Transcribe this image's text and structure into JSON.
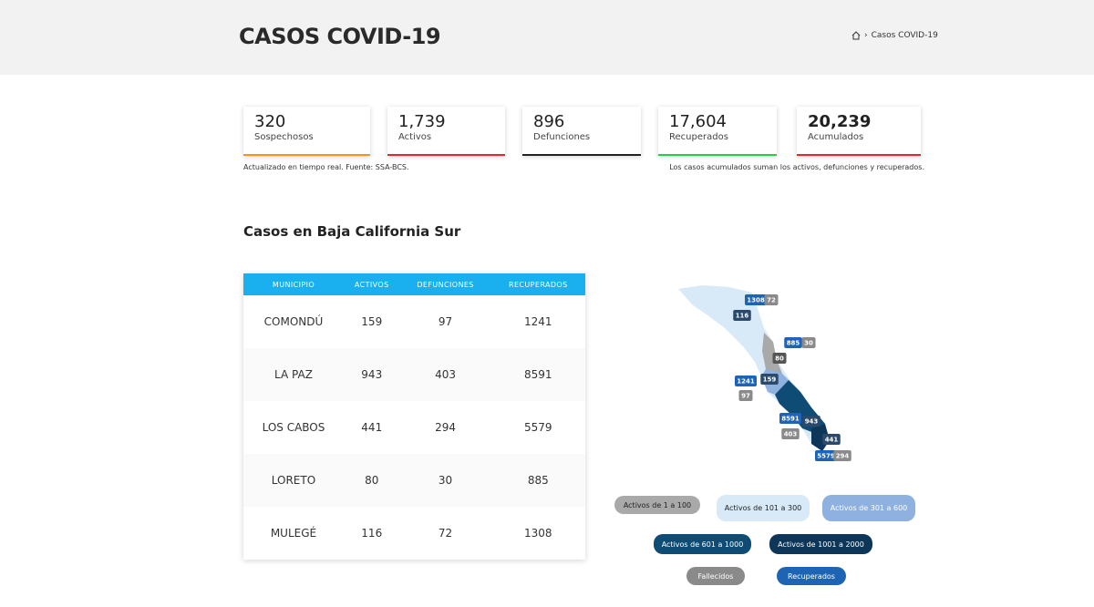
{
  "header": {
    "title": "CASOS COVID-19",
    "breadcrumb": "Casos COVID-19"
  },
  "stats": [
    {
      "value": "320",
      "label": "Sospechosos",
      "color": "#f7941d"
    },
    {
      "value": "1,739",
      "label": "Activos",
      "color": "#e8262a"
    },
    {
      "value": "896",
      "label": "Defunciones",
      "color": "#222222"
    },
    {
      "value": "17,604",
      "label": "Recuperados",
      "color": "#2ecc40"
    },
    {
      "value": "20,239",
      "label": "Acumulados",
      "color": "#e8262a"
    }
  ],
  "notes": {
    "source": "Actualizado en tiempo real. Fuente: SSA-BCS.",
    "accumulated": "Los casos acumulados suman los activos, defunciones y recuperados."
  },
  "section_title": "Casos en Baja California Sur",
  "table": {
    "headers": [
      "MUNICIPIO",
      "ACTIVOS",
      "DEFUNCIONES",
      "RECUPERADOS"
    ],
    "rows": [
      [
        "COMONDÚ",
        "159",
        "97",
        "1241"
      ],
      [
        "LA PAZ",
        "943",
        "403",
        "8591"
      ],
      [
        "LOS CABOS",
        "441",
        "294",
        "5579"
      ],
      [
        "LORETO",
        "80",
        "30",
        "885"
      ],
      [
        "MULEGÉ",
        "116",
        "72",
        "1308"
      ]
    ]
  },
  "map": {
    "badges": [
      {
        "label": "1308",
        "color": "#1e64b4"
      },
      {
        "label": "72",
        "color": "#8a8a8a"
      },
      {
        "label": "116",
        "color": "#2b4a6b"
      },
      {
        "label": "885",
        "color": "#1e64b4"
      },
      {
        "label": "30",
        "color": "#8a8a8a"
      },
      {
        "label": "80",
        "color": "#555555"
      },
      {
        "label": "1241",
        "color": "#1e64b4"
      },
      {
        "label": "159",
        "color": "#2b4a6b"
      },
      {
        "label": "97",
        "color": "#8a8a8a"
      },
      {
        "label": "8591",
        "color": "#1e64b4"
      },
      {
        "label": "943",
        "color": "#2b4a6b"
      },
      {
        "label": "403",
        "color": "#8a8a8a"
      },
      {
        "label": "441",
        "color": "#2b4a6b"
      },
      {
        "label": "5579",
        "color": "#1e64b4"
      },
      {
        "label": "294",
        "color": "#8a8a8a"
      }
    ]
  },
  "legend": [
    {
      "label": "Activos de 1 a 100",
      "color": "#a9a9a9",
      "text_color": "#222222"
    },
    {
      "label": "Activos de 101 a 300",
      "color": "#d8eaf7",
      "text_color": "#222222"
    },
    {
      "label": "Activos de 301 a 600",
      "color": "#8eb1e0",
      "text_color": "#ffffff"
    },
    {
      "label": "Activos de 601 a 1000",
      "color": "#0f4c75",
      "text_color": "#ffffff"
    },
    {
      "label": "Activos de 1001 a 2000",
      "color": "#0d3659",
      "text_color": "#ffffff"
    },
    {
      "label": "Fallecidos",
      "color": "#8a8a8a",
      "text_color": "#ffffff"
    },
    {
      "label": "Recuperados",
      "color": "#1e64b4",
      "text_color": "#ffffff"
    }
  ]
}
